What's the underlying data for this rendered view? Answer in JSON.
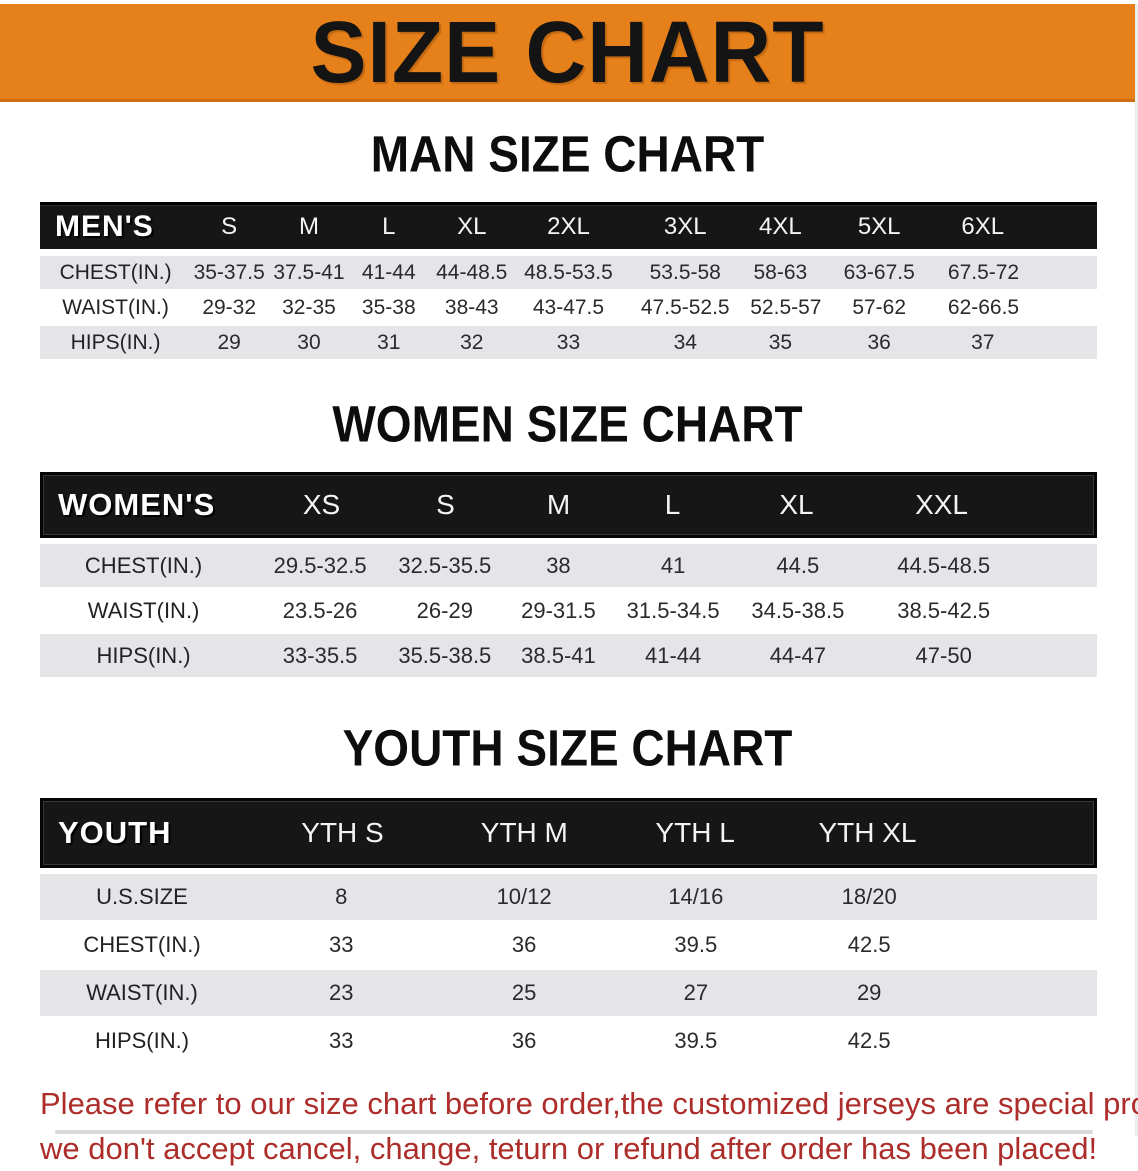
{
  "banner": {
    "title": "SIZE CHART"
  },
  "colors": {
    "banner_orange": "#E6801B",
    "header_black": "#161616",
    "row_gray": "#E5E5E7",
    "disclaimer_red": "#AC2D2A"
  },
  "sections": [
    {
      "id": "men",
      "heading": "MAN SIZE CHART",
      "table": {
        "label": "MEN'S",
        "columns": [
          "S",
          "M",
          "L",
          "XL",
          "2XL",
          "3XL",
          "4XL",
          "5XL",
          "6XL"
        ],
        "rows": [
          {
            "label": "CHEST(IN.)",
            "values": [
              "35-37.5",
              "37.5-41",
              "41-44",
              "44-48.5",
              "48.5-53.5",
              "53.5-58",
              "58-63",
              "63-67.5",
              "67.5-72"
            ]
          },
          {
            "label": "WAIST(IN.)",
            "values": [
              "29-32",
              "32-35",
              "35-38",
              "38-43",
              "43-47.5",
              "47.5-52.5",
              "52.5-57",
              "57-62",
              "62-66.5"
            ]
          },
          {
            "label": "HIPS(IN.)",
            "values": [
              "29",
              "30",
              "31",
              "32",
              "33",
              "34",
              "35",
              "36",
              "37"
            ]
          }
        ]
      }
    },
    {
      "id": "women",
      "heading": "WOMEN SIZE CHART",
      "table": {
        "label": "WOMEN'S",
        "columns": [
          "XS",
          "S",
          "M",
          "L",
          "XL",
          "XXL"
        ],
        "rows": [
          {
            "label": "CHEST(IN.)",
            "values": [
              "29.5-32.5",
              "32.5-35.5",
              "38",
              "41",
              "44.5",
              "44.5-48.5"
            ]
          },
          {
            "label": "WAIST(IN.)",
            "values": [
              "23.5-26",
              "26-29",
              "29-31.5",
              "31.5-34.5",
              "34.5-38.5",
              "38.5-42.5"
            ]
          },
          {
            "label": "HIPS(IN.)",
            "values": [
              "33-35.5",
              "35.5-38.5",
              "38.5-41",
              "41-44",
              "44-47",
              "47-50"
            ]
          }
        ]
      }
    },
    {
      "id": "youth",
      "heading": "YOUTH SIZE CHART",
      "table": {
        "label": "YOUTH",
        "columns": [
          "YTH S",
          "YTH M",
          "YTH L",
          "YTH XL"
        ],
        "rows": [
          {
            "label": "U.S.SIZE",
            "values": [
              "8",
              "10/12",
              "14/16",
              "18/20"
            ]
          },
          {
            "label": "CHEST(IN.)",
            "values": [
              "33",
              "36",
              "39.5",
              "42.5"
            ]
          },
          {
            "label": "WAIST(IN.)",
            "values": [
              "23",
              "25",
              "27",
              "29"
            ]
          },
          {
            "label": "HIPS(IN.)",
            "values": [
              "33",
              "36",
              "39.5",
              "42.5"
            ]
          }
        ]
      }
    }
  ],
  "disclaimer": {
    "line1": "Please refer to our size chart before order,the customized jerseys are special products,",
    "line2": "we don't accept cancel, change, teturn or refund after order has been placed!"
  }
}
